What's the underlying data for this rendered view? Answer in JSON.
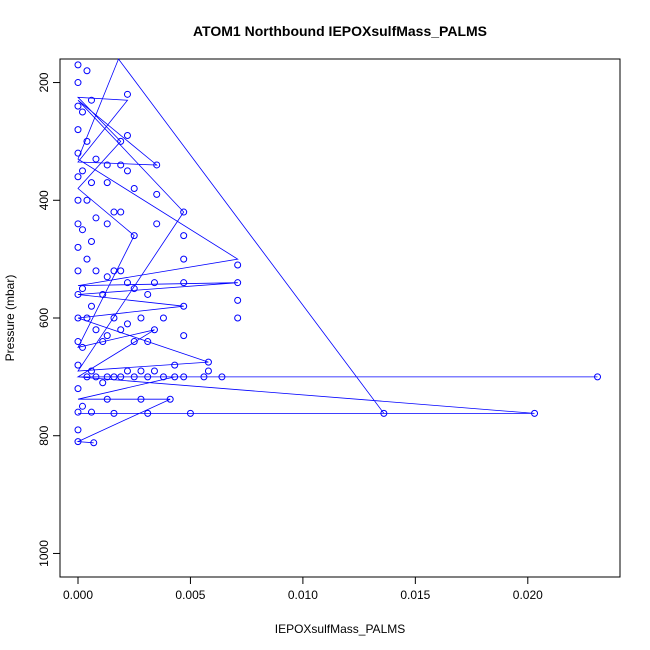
{
  "chart_data": {
    "type": "scatter",
    "title": "ATOM1 Northbound IEPOXsulfMass_PALMS",
    "xlabel": "IEPOXsulfMass_PALMS",
    "ylabel": "Pressure (mbar)",
    "xlim": [
      -0.0008,
      0.0241
    ],
    "ylim": [
      1040,
      160
    ],
    "y_reversed": true,
    "x_ticks": [
      0.0,
      0.005,
      0.01,
      0.015,
      0.02
    ],
    "x_tick_labels": [
      "0.000",
      "0.005",
      "0.010",
      "0.015",
      "0.020"
    ],
    "y_ticks": [
      200,
      400,
      600,
      800,
      1000
    ],
    "y_tick_labels": [
      "200",
      "400",
      "600",
      "800",
      "1000"
    ],
    "grid": false,
    "legend": "none",
    "series_color": "#0000ff",
    "marker": "open-circle",
    "connected_by_lines": true,
    "points": [
      {
        "x": 0.0,
        "y": 810
      },
      {
        "x": 0.0,
        "y": 790
      },
      {
        "x": 0.0,
        "y": 760
      },
      {
        "x": 0.0,
        "y": 720
      },
      {
        "x": 0.0,
        "y": 680
      },
      {
        "x": 0.0,
        "y": 640
      },
      {
        "x": 0.0,
        "y": 600
      },
      {
        "x": 0.0,
        "y": 560
      },
      {
        "x": 0.0,
        "y": 520
      },
      {
        "x": 0.0,
        "y": 480
      },
      {
        "x": 0.0,
        "y": 440
      },
      {
        "x": 0.0,
        "y": 400
      },
      {
        "x": 0.0,
        "y": 360
      },
      {
        "x": 0.0,
        "y": 320
      },
      {
        "x": 0.0,
        "y": 280
      },
      {
        "x": 0.0,
        "y": 240
      },
      {
        "x": 0.0,
        "y": 200
      },
      {
        "x": 0.0,
        "y": 170
      },
      {
        "x": 0.0002,
        "y": 750
      },
      {
        "x": 0.0002,
        "y": 650
      },
      {
        "x": 0.0002,
        "y": 550
      },
      {
        "x": 0.0002,
        "y": 450
      },
      {
        "x": 0.0002,
        "y": 350
      },
      {
        "x": 0.0002,
        "y": 250
      },
      {
        "x": 0.0004,
        "y": 700
      },
      {
        "x": 0.0004,
        "y": 600
      },
      {
        "x": 0.0004,
        "y": 500
      },
      {
        "x": 0.0004,
        "y": 400
      },
      {
        "x": 0.0004,
        "y": 300
      },
      {
        "x": 0.0004,
        "y": 180
      },
      {
        "x": 0.0006,
        "y": 760
      },
      {
        "x": 0.0006,
        "y": 690
      },
      {
        "x": 0.0006,
        "y": 580
      },
      {
        "x": 0.0006,
        "y": 470
      },
      {
        "x": 0.0006,
        "y": 370
      },
      {
        "x": 0.0006,
        "y": 230
      },
      {
        "x": 0.0007,
        "y": 812
      },
      {
        "x": 0.0008,
        "y": 700
      },
      {
        "x": 0.0008,
        "y": 620
      },
      {
        "x": 0.0008,
        "y": 520
      },
      {
        "x": 0.0008,
        "y": 430
      },
      {
        "x": 0.0008,
        "y": 330
      },
      {
        "x": 0.0011,
        "y": 710
      },
      {
        "x": 0.0011,
        "y": 640
      },
      {
        "x": 0.0011,
        "y": 560
      },
      {
        "x": 0.0013,
        "y": 738
      },
      {
        "x": 0.0013,
        "y": 700
      },
      {
        "x": 0.0013,
        "y": 630
      },
      {
        "x": 0.0013,
        "y": 530
      },
      {
        "x": 0.0013,
        "y": 440
      },
      {
        "x": 0.0013,
        "y": 370
      },
      {
        "x": 0.0013,
        "y": 340
      },
      {
        "x": 0.0016,
        "y": 762
      },
      {
        "x": 0.0016,
        "y": 700
      },
      {
        "x": 0.0016,
        "y": 600
      },
      {
        "x": 0.0016,
        "y": 520
      },
      {
        "x": 0.0016,
        "y": 420
      },
      {
        "x": 0.0019,
        "y": 700
      },
      {
        "x": 0.0019,
        "y": 620
      },
      {
        "x": 0.0019,
        "y": 520
      },
      {
        "x": 0.0019,
        "y": 420
      },
      {
        "x": 0.0019,
        "y": 340
      },
      {
        "x": 0.0019,
        "y": 300
      },
      {
        "x": 0.0022,
        "y": 690
      },
      {
        "x": 0.0022,
        "y": 610
      },
      {
        "x": 0.0022,
        "y": 540
      },
      {
        "x": 0.0022,
        "y": 350
      },
      {
        "x": 0.0022,
        "y": 290
      },
      {
        "x": 0.0022,
        "y": 220
      },
      {
        "x": 0.0025,
        "y": 700
      },
      {
        "x": 0.0025,
        "y": 640
      },
      {
        "x": 0.0025,
        "y": 550
      },
      {
        "x": 0.0025,
        "y": 460
      },
      {
        "x": 0.0025,
        "y": 380
      },
      {
        "x": 0.0028,
        "y": 738
      },
      {
        "x": 0.0028,
        "y": 690
      },
      {
        "x": 0.0028,
        "y": 600
      },
      {
        "x": 0.0031,
        "y": 762
      },
      {
        "x": 0.0031,
        "y": 700
      },
      {
        "x": 0.0031,
        "y": 640
      },
      {
        "x": 0.0031,
        "y": 560
      },
      {
        "x": 0.0034,
        "y": 690
      },
      {
        "x": 0.0034,
        "y": 620
      },
      {
        "x": 0.0034,
        "y": 540
      },
      {
        "x": 0.0035,
        "y": 440
      },
      {
        "x": 0.0035,
        "y": 390
      },
      {
        "x": 0.0035,
        "y": 340
      },
      {
        "x": 0.0038,
        "y": 700
      },
      {
        "x": 0.0038,
        "y": 600
      },
      {
        "x": 0.0041,
        "y": 738
      },
      {
        "x": 0.0043,
        "y": 700
      },
      {
        "x": 0.0043,
        "y": 680
      },
      {
        "x": 0.0047,
        "y": 700
      },
      {
        "x": 0.0047,
        "y": 630
      },
      {
        "x": 0.0047,
        "y": 580
      },
      {
        "x": 0.0047,
        "y": 540
      },
      {
        "x": 0.0047,
        "y": 500
      },
      {
        "x": 0.0047,
        "y": 460
      },
      {
        "x": 0.0047,
        "y": 420
      },
      {
        "x": 0.005,
        "y": 762
      },
      {
        "x": 0.0056,
        "y": 700
      },
      {
        "x": 0.0058,
        "y": 690
      },
      {
        "x": 0.0058,
        "y": 675
      },
      {
        "x": 0.0064,
        "y": 700
      },
      {
        "x": 0.0071,
        "y": 600
      },
      {
        "x": 0.0071,
        "y": 570
      },
      {
        "x": 0.0071,
        "y": 540
      },
      {
        "x": 0.0071,
        "y": 510
      },
      {
        "x": 0.0136,
        "y": 762
      },
      {
        "x": 0.0203,
        "y": 762
      },
      {
        "x": 0.0231,
        "y": 700
      }
    ],
    "path": [
      {
        "x": 0.0231,
        "y": 700
      },
      {
        "x": 0.0,
        "y": 700
      },
      {
        "x": 0.0203,
        "y": 762
      },
      {
        "x": 0.0,
        "y": 762
      },
      {
        "x": 0.0136,
        "y": 762
      },
      {
        "x": 0.0018,
        "y": 160
      },
      {
        "x": 0.0,
        "y": 330
      },
      {
        "x": 0.0071,
        "y": 500
      },
      {
        "x": 0.0,
        "y": 545
      },
      {
        "x": 0.0071,
        "y": 540
      },
      {
        "x": 0.0,
        "y": 560
      },
      {
        "x": 0.0047,
        "y": 580
      },
      {
        "x": 0.0,
        "y": 600
      },
      {
        "x": 0.0058,
        "y": 675
      },
      {
        "x": 0.0,
        "y": 690
      },
      {
        "x": 0.0047,
        "y": 420
      },
      {
        "x": 0.0,
        "y": 230
      },
      {
        "x": 0.0035,
        "y": 340
      },
      {
        "x": 0.0,
        "y": 335
      },
      {
        "x": 0.0022,
        "y": 230
      },
      {
        "x": 0.0,
        "y": 225
      },
      {
        "x": 0.0019,
        "y": 300
      },
      {
        "x": 0.0,
        "y": 380
      },
      {
        "x": 0.0025,
        "y": 460
      },
      {
        "x": 0.0,
        "y": 650
      },
      {
        "x": 0.0034,
        "y": 620
      },
      {
        "x": 0.0,
        "y": 700
      },
      {
        "x": 0.0043,
        "y": 700
      },
      {
        "x": 0.0,
        "y": 738
      },
      {
        "x": 0.0041,
        "y": 738
      },
      {
        "x": 0.0,
        "y": 810
      },
      {
        "x": 0.0007,
        "y": 812
      }
    ]
  }
}
